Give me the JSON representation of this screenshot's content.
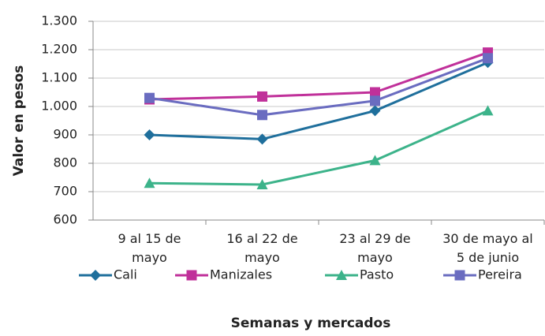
{
  "chart_data": {
    "type": "line",
    "y_label": "Valor en pesos",
    "x_label": "Semanas y mercados",
    "categories": [
      "9 al 15 de\nmayo",
      "16 al 22 de\nmayo",
      "23 al 29 de\nmayo",
      "30 de mayo al\n5 de junio"
    ],
    "series": [
      {
        "name": "Cali",
        "color": "#1f6f9c",
        "marker": "diamond",
        "values": [
          900,
          885,
          985,
          1155
        ]
      },
      {
        "name": "Manizales",
        "color": "#c0309a",
        "marker": "square",
        "values": [
          1025,
          1035,
          1050,
          1190
        ]
      },
      {
        "name": "Pasto",
        "color": "#3cb38a",
        "marker": "triangle",
        "values": [
          730,
          725,
          810,
          985
        ]
      },
      {
        "name": "Pereira",
        "color": "#6a6cc0",
        "marker": "square",
        "values": [
          1030,
          970,
          1020,
          1170
        ]
      }
    ],
    "ylim": [
      600,
      1300
    ],
    "yticks": [
      600,
      700,
      800,
      900,
      {
        "value": 1000,
        "label": "1.000"
      },
      {
        "value": 1100,
        "label": "1.100"
      },
      {
        "value": 1200,
        "label": "1.200"
      },
      {
        "value": 1300,
        "label": "1.300"
      }
    ],
    "grid": true,
    "legend": "bottom"
  }
}
